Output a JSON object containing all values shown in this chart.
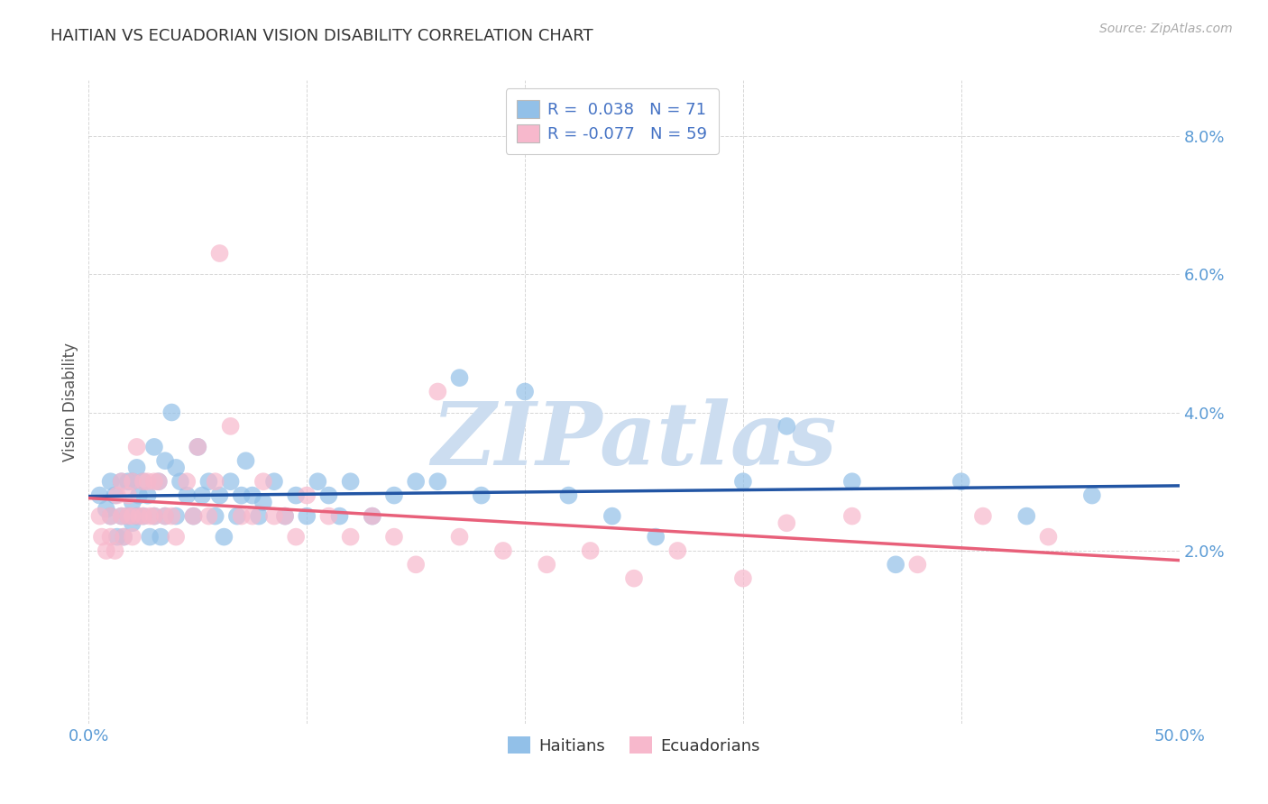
{
  "title": "HAITIAN VS ECUADORIAN VISION DISABILITY CORRELATION CHART",
  "source": "Source: ZipAtlas.com",
  "ylabel": "Vision Disability",
  "ytick_positions": [
    0.02,
    0.04,
    0.06,
    0.08
  ],
  "ytick_labels": [
    "2.0%",
    "4.0%",
    "6.0%",
    "8.0%"
  ],
  "xtick_positions": [
    0.0,
    0.1,
    0.2,
    0.3,
    0.4,
    0.5
  ],
  "xtick_labels": [
    "0.0%",
    "",
    "",
    "",
    "",
    "50.0%"
  ],
  "xlim": [
    0.0,
    0.5
  ],
  "ylim": [
    -0.005,
    0.088
  ],
  "r_haitian": 0.038,
  "n_haitian": 71,
  "r_ecuadorian": -0.077,
  "n_ecuadorian": 59,
  "haitian_color": "#92c0e8",
  "ecuadorian_color": "#f7b8cc",
  "trend_haitian_color": "#2255a4",
  "trend_ecuadorian_color": "#e8607a",
  "watermark_color": "#ccddf0",
  "background_color": "#ffffff",
  "tick_color": "#5b9bd5",
  "haitian_x": [
    0.005,
    0.008,
    0.01,
    0.01,
    0.012,
    0.013,
    0.015,
    0.015,
    0.016,
    0.018,
    0.018,
    0.02,
    0.02,
    0.02,
    0.022,
    0.022,
    0.023,
    0.025,
    0.025,
    0.027,
    0.028,
    0.03,
    0.03,
    0.032,
    0.033,
    0.035,
    0.035,
    0.038,
    0.04,
    0.04,
    0.042,
    0.045,
    0.048,
    0.05,
    0.052,
    0.055,
    0.058,
    0.06,
    0.062,
    0.065,
    0.068,
    0.07,
    0.072,
    0.075,
    0.078,
    0.08,
    0.085,
    0.09,
    0.095,
    0.1,
    0.105,
    0.11,
    0.115,
    0.12,
    0.13,
    0.14,
    0.15,
    0.16,
    0.17,
    0.18,
    0.2,
    0.22,
    0.24,
    0.26,
    0.3,
    0.32,
    0.35,
    0.37,
    0.4,
    0.43,
    0.46
  ],
  "haitian_y": [
    0.028,
    0.026,
    0.03,
    0.025,
    0.028,
    0.022,
    0.03,
    0.025,
    0.022,
    0.03,
    0.025,
    0.03,
    0.027,
    0.024,
    0.032,
    0.025,
    0.028,
    0.03,
    0.025,
    0.028,
    0.022,
    0.035,
    0.025,
    0.03,
    0.022,
    0.033,
    0.025,
    0.04,
    0.032,
    0.025,
    0.03,
    0.028,
    0.025,
    0.035,
    0.028,
    0.03,
    0.025,
    0.028,
    0.022,
    0.03,
    0.025,
    0.028,
    0.033,
    0.028,
    0.025,
    0.027,
    0.03,
    0.025,
    0.028,
    0.025,
    0.03,
    0.028,
    0.025,
    0.03,
    0.025,
    0.028,
    0.03,
    0.03,
    0.045,
    0.028,
    0.043,
    0.028,
    0.025,
    0.022,
    0.03,
    0.038,
    0.03,
    0.018,
    0.03,
    0.025,
    0.028
  ],
  "ecuadorian_x": [
    0.005,
    0.006,
    0.008,
    0.01,
    0.01,
    0.012,
    0.013,
    0.015,
    0.015,
    0.016,
    0.018,
    0.018,
    0.02,
    0.02,
    0.02,
    0.022,
    0.023,
    0.025,
    0.025,
    0.027,
    0.028,
    0.03,
    0.03,
    0.032,
    0.035,
    0.038,
    0.04,
    0.045,
    0.048,
    0.05,
    0.055,
    0.058,
    0.06,
    0.065,
    0.07,
    0.075,
    0.08,
    0.085,
    0.09,
    0.095,
    0.1,
    0.11,
    0.12,
    0.13,
    0.14,
    0.15,
    0.16,
    0.17,
    0.19,
    0.21,
    0.23,
    0.25,
    0.27,
    0.3,
    0.32,
    0.35,
    0.38,
    0.41,
    0.44
  ],
  "ecuadorian_y": [
    0.025,
    0.022,
    0.02,
    0.025,
    0.022,
    0.02,
    0.028,
    0.03,
    0.025,
    0.022,
    0.028,
    0.025,
    0.03,
    0.025,
    0.022,
    0.035,
    0.025,
    0.03,
    0.025,
    0.03,
    0.025,
    0.03,
    0.025,
    0.03,
    0.025,
    0.025,
    0.022,
    0.03,
    0.025,
    0.035,
    0.025,
    0.03,
    0.063,
    0.038,
    0.025,
    0.025,
    0.03,
    0.025,
    0.025,
    0.022,
    0.028,
    0.025,
    0.022,
    0.025,
    0.022,
    0.018,
    0.043,
    0.022,
    0.02,
    0.018,
    0.02,
    0.016,
    0.02,
    0.016,
    0.024,
    0.025,
    0.018,
    0.025,
    0.022
  ]
}
